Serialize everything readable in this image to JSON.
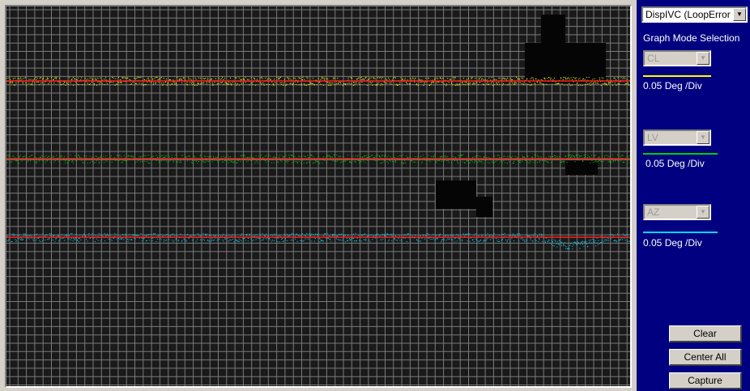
{
  "display_select": {
    "value": "DispIVC (LoopError"
  },
  "panel": {
    "mode_heading": "Graph Mode Selection",
    "channels": [
      {
        "name": "CL",
        "scale": "0.05 Deg /Div",
        "color": "#ffff00"
      },
      {
        "name": "LV",
        "scale": "0.05 Deg /Div",
        "color": "#00d000"
      },
      {
        "name": "AZ",
        "scale": "0.05 Deg /Div",
        "color": "#00d8ff"
      }
    ],
    "buttons": {
      "clear": "Clear",
      "center_all": "Center All",
      "capture": "Capture"
    }
  },
  "plot": {
    "background": "#1a1a1a",
    "grid_color": "#7a7a7a",
    "reference_line_color": "#ff2020",
    "trace_colors": [
      "#ffff00",
      "#00d000",
      "#00d8ff"
    ],
    "trace_spread_divisions": 1.0
  }
}
